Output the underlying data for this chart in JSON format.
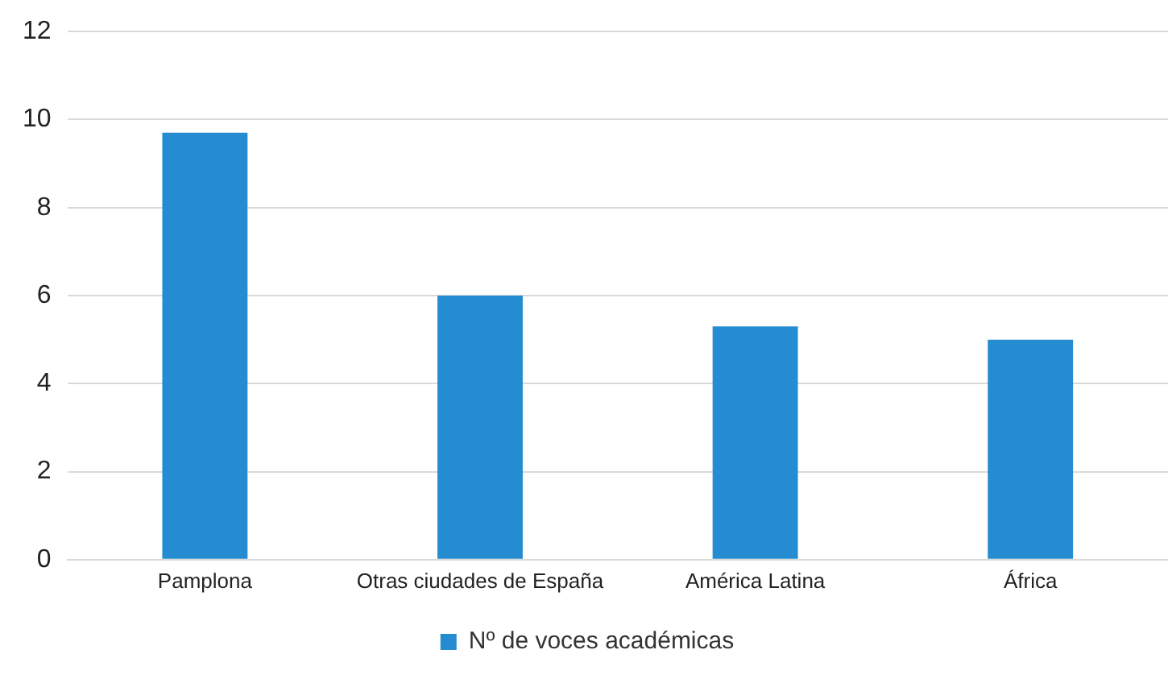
{
  "chart_data": {
    "type": "bar",
    "categories": [
      "Pamplona",
      "Otras ciudades de España",
      "América Latina",
      "África"
    ],
    "series": [
      {
        "name": "Nº de voces académicas",
        "color": "#268cd2",
        "values": [
          9.7,
          6,
          5.3,
          5
        ]
      }
    ],
    "ylim": [
      0,
      12
    ],
    "yticks": [
      0,
      2,
      4,
      6,
      8,
      10,
      12
    ],
    "grid": "y",
    "legend": "bottom"
  }
}
